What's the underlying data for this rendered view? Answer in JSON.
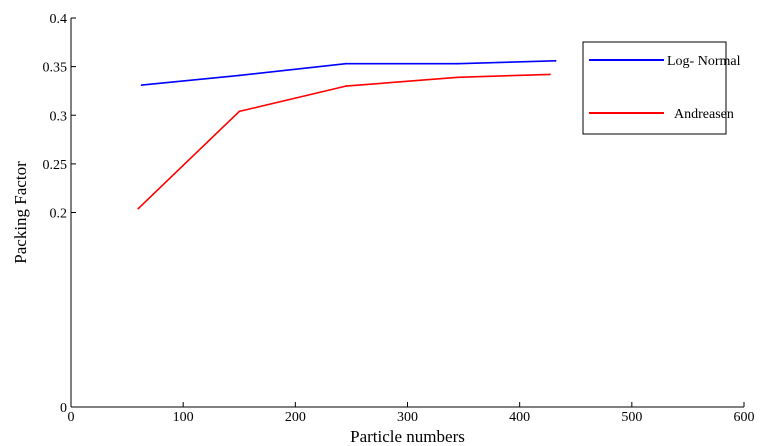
{
  "chart_data": {
    "type": "line",
    "xlabel": "Particle numbers",
    "ylabel": "Packing Factor",
    "xlim": [
      0,
      600
    ],
    "ylim": [
      0,
      0.4
    ],
    "x_ticks": [
      0,
      100,
      200,
      300,
      400,
      500,
      600
    ],
    "x_tick_labels": [
      "0",
      "100",
      "200",
      "300",
      "400",
      "500",
      "600"
    ],
    "y_ticks": [
      0,
      0.2,
      0.25,
      0.3,
      0.35,
      0.4
    ],
    "y_tick_labels": [
      "0",
      "0.2",
      "0.25",
      "0.3",
      "0.35",
      "0.4"
    ],
    "grid": false,
    "legend_position": "top-right",
    "series": [
      {
        "name": "Log- Normal",
        "color": "#0000ff",
        "x": [
          63,
          150,
          245,
          345,
          432
        ],
        "y": [
          0.331,
          0.341,
          0.353,
          0.353,
          0.356
        ]
      },
      {
        "name": "Andreasen",
        "color": "#ff0000",
        "x": [
          60,
          150,
          245,
          345,
          427
        ],
        "y": [
          0.204,
          0.304,
          0.33,
          0.339,
          0.342
        ]
      }
    ]
  }
}
